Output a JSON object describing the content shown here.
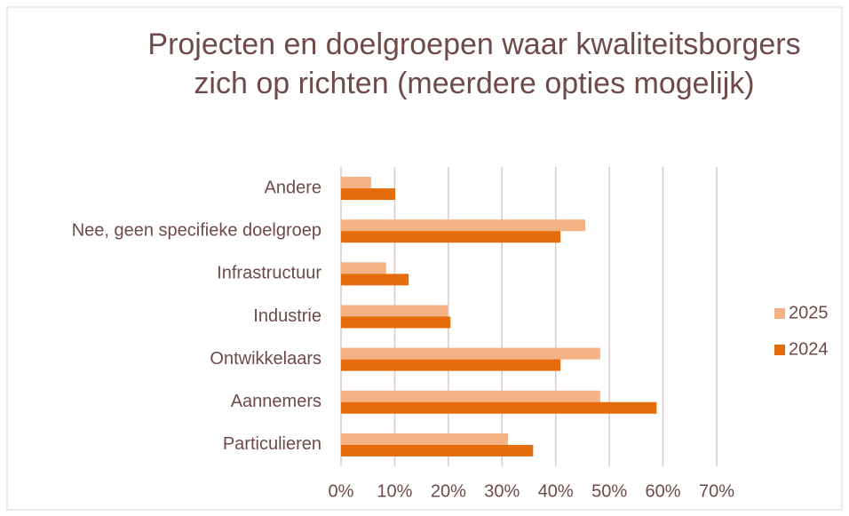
{
  "chart_data": {
    "type": "bar",
    "orientation": "horizontal",
    "title": "Projecten en doelgroepen waar kwaliteitsborgers zich op richten (meerdere opties mogelijk)",
    "categories": [
      "Andere",
      "Nee, geen specifieke doelgroep",
      "Infrastructuur",
      "Industrie",
      "Ontwikkelaars",
      "Aannemers",
      "Particulieren"
    ],
    "series": [
      {
        "name": "2025",
        "color": "#f4b183",
        "values": [
          5.6,
          45.5,
          8.4,
          19.9,
          48.3,
          48.3,
          31.1
        ]
      },
      {
        "name": "2024",
        "color": "#e46c0a",
        "values": [
          10.1,
          40.9,
          12.6,
          20.4,
          40.9,
          58.8,
          35.8
        ]
      }
    ],
    "xlim": [
      0,
      70
    ],
    "xticks": [
      {
        "value": 0,
        "label": "0%"
      },
      {
        "value": 10,
        "label": "10%"
      },
      {
        "value": 20,
        "label": "20%"
      },
      {
        "value": 30,
        "label": "30%"
      },
      {
        "value": 40,
        "label": "40%"
      },
      {
        "value": 50,
        "label": "50%"
      },
      {
        "value": 60,
        "label": "60%"
      },
      {
        "value": 70,
        "label": "70%"
      }
    ],
    "grid": true,
    "legend": "right"
  }
}
